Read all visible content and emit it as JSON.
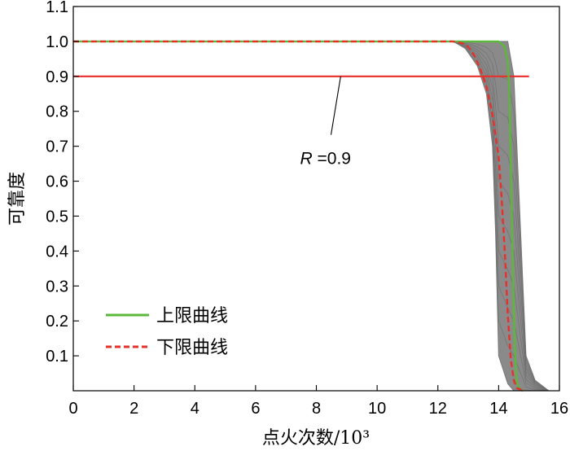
{
  "chart_data": {
    "type": "line",
    "xlabel": "点火次数/10³",
    "ylabel": "可靠度",
    "xlim": [
      0,
      16
    ],
    "ylim": [
      0,
      1.1
    ],
    "xticks": [
      0,
      2,
      4,
      6,
      8,
      10,
      12,
      14,
      16
    ],
    "yticks": [
      0.1,
      0.2,
      0.3,
      0.4,
      0.5,
      0.6,
      0.7,
      0.8,
      0.9,
      1.0,
      1.1
    ],
    "grid": false,
    "legend_position": "bottom-left",
    "colors": {
      "upper": "#5cb83a",
      "lower": "#e8302a",
      "threshold": "#e8302a",
      "band": "#8a8a8a"
    },
    "series": [
      {
        "name": "上限曲线",
        "style": "solid",
        "x": [
          0,
          12.5,
          13.5,
          14.0,
          14.2,
          14.3,
          14.35,
          14.4,
          14.45,
          14.5,
          14.55,
          14.6,
          14.7,
          14.8
        ],
        "y": [
          1.0,
          1.0,
          1.0,
          1.0,
          0.985,
          0.94,
          0.86,
          0.65,
          0.42,
          0.22,
          0.09,
          0.025,
          0.003,
          0.0
        ]
      },
      {
        "name": "下限曲线",
        "style": "dashed",
        "x": [
          0,
          12.5,
          12.8,
          13.0,
          13.2,
          13.4,
          13.6,
          13.8,
          14.0,
          14.1,
          14.2,
          14.3,
          14.4,
          14.5,
          14.6,
          14.8
        ],
        "y": [
          1.0,
          1.0,
          0.995,
          0.985,
          0.96,
          0.92,
          0.87,
          0.79,
          0.67,
          0.55,
          0.4,
          0.22,
          0.09,
          0.03,
          0.008,
          0.0
        ]
      },
      {
        "name": "",
        "style": "band",
        "x": [
          12.5,
          12.9,
          13.3,
          13.6,
          13.8,
          13.9,
          14.0,
          14.3,
          14.5,
          14.7,
          14.9,
          15.2,
          15.65
        ],
        "y_upper": [
          1.0,
          1.0,
          1.0,
          1.0,
          1.0,
          1.0,
          1.0,
          1.0,
          0.9,
          0.5,
          0.1,
          0.03,
          0.0
        ],
        "y_lower": [
          1.0,
          0.98,
          0.93,
          0.85,
          0.7,
          0.45,
          0.1,
          0.02,
          0.0,
          0.0,
          0.0,
          0.0,
          0.0
        ]
      }
    ],
    "reference_line": {
      "y": 0.9,
      "x_range": [
        0,
        15.0
      ]
    },
    "annotations": [
      {
        "text_prefix": "R",
        "text_suffix": " =0.9",
        "point_x": 8.8,
        "point_y": 0.9,
        "text_x": 8.0,
        "text_y": 0.7
      }
    ]
  }
}
